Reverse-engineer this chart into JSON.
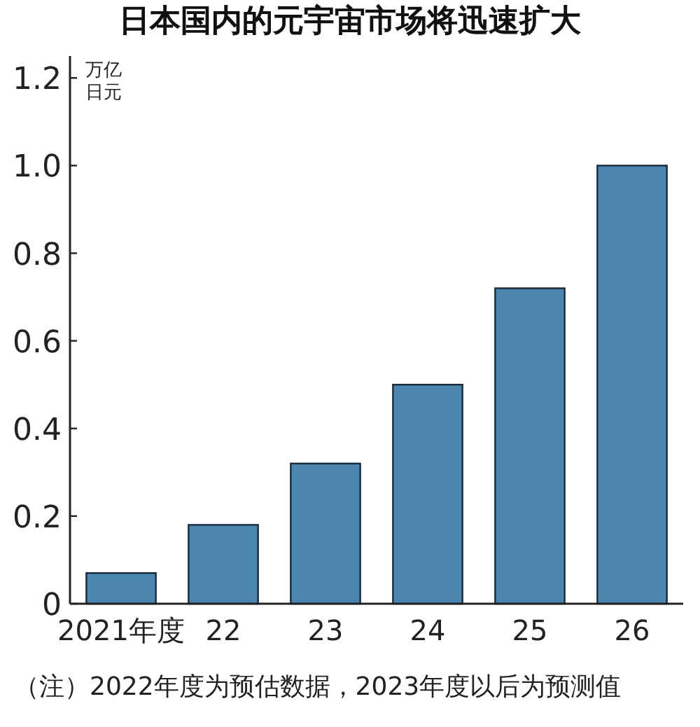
{
  "chart_data": {
    "type": "bar",
    "title": "日本国内的元宇宙市场将迅速扩大",
    "ylabel": "万亿日元",
    "categories": [
      "2021年度",
      "22",
      "23",
      "24",
      "25",
      "26"
    ],
    "values": [
      0.07,
      0.18,
      0.32,
      0.5,
      0.72,
      1.0
    ],
    "color": "#4a86b0",
    "ylim": [
      0,
      1.25
    ],
    "yticks": [
      0,
      0.2,
      0.4,
      0.6,
      0.8,
      {
        "value": 1,
        "label": "1.0"
      },
      1.2
    ],
    "grid": false,
    "annotations": [
      "（注）2022年度为预估数据，2023年度以后为预测值"
    ]
  }
}
